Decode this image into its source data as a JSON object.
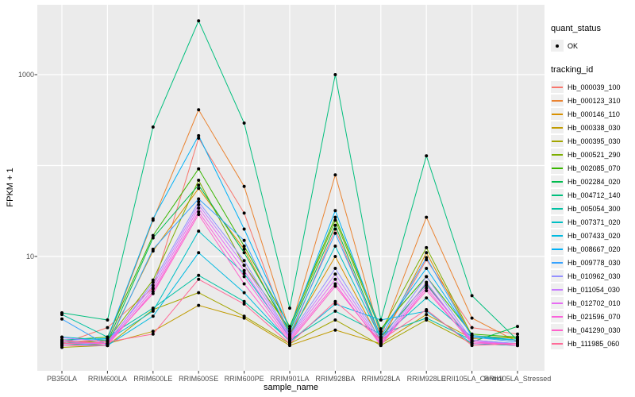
{
  "legend": {
    "quant_status_title": "quant_status",
    "quant_status_ok": "OK",
    "tracking_id_title": "tracking_id"
  },
  "chart_data": {
    "type": "line",
    "title": "",
    "xlabel": "sample_name",
    "ylabel": "FPKM + 1",
    "y_scale": "log10",
    "ylim": [
      1,
      5000
    ],
    "y_tick_labels": [
      {
        "label": "1000",
        "value": 1000
      },
      {
        "label": "10",
        "value": 10
      }
    ],
    "gridlines": [
      10,
      100,
      1000
    ],
    "grid_on": true,
    "panel_bg": "#EBEBEB",
    "grid_color": "#FFFFFF",
    "point_color": "#000000",
    "legend_position": "right",
    "quant_status_all": "OK",
    "categories": [
      "PB350LA",
      "RRIM600LA",
      "RRIM600LE",
      "RRIM600SE",
      "RRIM600PE",
      "RRIM901LA",
      "RRIM928BA",
      "RRIM928LA",
      "RRIM928LE",
      "RRII105LA_Control",
      "RRII105LA_Stressed"
    ],
    "series": [
      {
        "name": "Hb_000039_100",
        "color": "#F8766D",
        "values": [
          1.1,
          1.65,
          4.5,
          200,
          30,
          1.3,
          20,
          1.2,
          9.2,
          1.65,
          1.4
        ]
      },
      {
        "name": "Hb_000123_310",
        "color": "#EA8331",
        "values": [
          1.15,
          1.2,
          25,
          410,
          59,
          1.5,
          79,
          1.3,
          27,
          2.1,
          1.15
        ]
      },
      {
        "name": "Hb_000146_110",
        "color": "#D89000",
        "values": [
          1.2,
          1.1,
          11.5,
          56,
          12,
          1.4,
          10,
          1.15,
          11,
          1.3,
          1.2
        ]
      },
      {
        "name": "Hb_000338_030",
        "color": "#C09B00",
        "values": [
          1.05,
          1.1,
          1.5,
          2.9,
          2.1,
          1.05,
          1.55,
          1.1,
          2.3,
          1.25,
          1.3
        ]
      },
      {
        "name": "Hb_000395_030",
        "color": "#A3A500",
        "values": [
          1.0,
          1.05,
          2.6,
          4.0,
          2.2,
          1.1,
          2.0,
          1.05,
          2.0,
          1.1,
          1.05
        ]
      },
      {
        "name": "Hb_000521_290",
        "color": "#7CAE00",
        "values": [
          1.1,
          1.2,
          5.5,
          69,
          8,
          1.6,
          25,
          1.5,
          12.5,
          1.35,
          1.25
        ]
      },
      {
        "name": "Hb_002085_070",
        "color": "#39B600",
        "values": [
          1.2,
          1.3,
          17,
          92,
          13,
          1.7,
          27,
          1.6,
          6.0,
          1.4,
          1.3
        ]
      },
      {
        "name": "Hb_002284_020",
        "color": "#00BB4E",
        "values": [
          1.1,
          1.15,
          16,
          61,
          11,
          1.5,
          22,
          1.3,
          5.0,
          1.15,
          1.7
        ]
      },
      {
        "name": "Hb_004712_140",
        "color": "#00BF7D",
        "values": [
          2.4,
          2.0,
          265,
          3900,
          293,
          2.7,
          1000,
          2.0,
          128,
          3.7,
          1.2
        ]
      },
      {
        "name": "Hb_005054_300",
        "color": "#00C1A3",
        "values": [
          2.3,
          1.3,
          2.7,
          6.2,
          3.2,
          1.2,
          2.5,
          1.4,
          2.1,
          1.2,
          1.1
        ]
      },
      {
        "name": "Hb_007371_020",
        "color": "#00BFC4",
        "values": [
          1.3,
          1.2,
          2.5,
          19,
          6.5,
          1.3,
          13,
          1.25,
          3.5,
          1.3,
          1.2
        ]
      },
      {
        "name": "Hb_007433_020",
        "color": "#00BAE0",
        "values": [
          1.1,
          1.05,
          2.2,
          11,
          4.0,
          1.15,
          3.0,
          2.0,
          2.5,
          1.1,
          1.05
        ]
      },
      {
        "name": "Hb_008667_020",
        "color": "#00B0F6",
        "values": [
          1.2,
          1.25,
          26,
          213,
          20,
          1.6,
          32,
          1.5,
          7.4,
          1.35,
          1.2
        ]
      },
      {
        "name": "Hb_009778_030",
        "color": "#35A2FF",
        "values": [
          2.05,
          1.05,
          12,
          43,
          15,
          1.4,
          18,
          1.3,
          9.7,
          1.3,
          1.15
        ]
      },
      {
        "name": "Hb_010962_030",
        "color": "#9590FF",
        "values": [
          1.15,
          1.1,
          5.2,
          40,
          9,
          1.35,
          7.4,
          1.2,
          6.0,
          1.2,
          1.1
        ]
      },
      {
        "name": "Hb_011054_030",
        "color": "#C77CFF",
        "values": [
          1.28,
          1.15,
          4.8,
          37,
          8,
          1.3,
          6.4,
          1.15,
          5.2,
          1.15,
          1.1
        ]
      },
      {
        "name": "Hb_012702_010",
        "color": "#E76BF3",
        "values": [
          1.1,
          1.1,
          4.4,
          34,
          7,
          1.25,
          5.6,
          1.1,
          4.8,
          1.2,
          1.05
        ]
      },
      {
        "name": "Hb_021596_070",
        "color": "#FA62DB",
        "values": [
          1.05,
          1.05,
          4.1,
          31,
          6,
          1.2,
          5.0,
          1.05,
          4.5,
          1.1,
          1.1
        ]
      },
      {
        "name": "Hb_041290_030",
        "color": "#FF61CC",
        "values": [
          1.2,
          1.1,
          3.9,
          29,
          5,
          1.15,
          4.7,
          1.1,
          4.2,
          1.15,
          1.05
        ]
      },
      {
        "name": "Hb_111985_060",
        "color": "#FF6A98",
        "values": [
          1.1,
          1.15,
          1.4,
          5.6,
          3.0,
          1.1,
          3.2,
          1.2,
          2.6,
          1.05,
          1.1
        ]
      }
    ]
  }
}
